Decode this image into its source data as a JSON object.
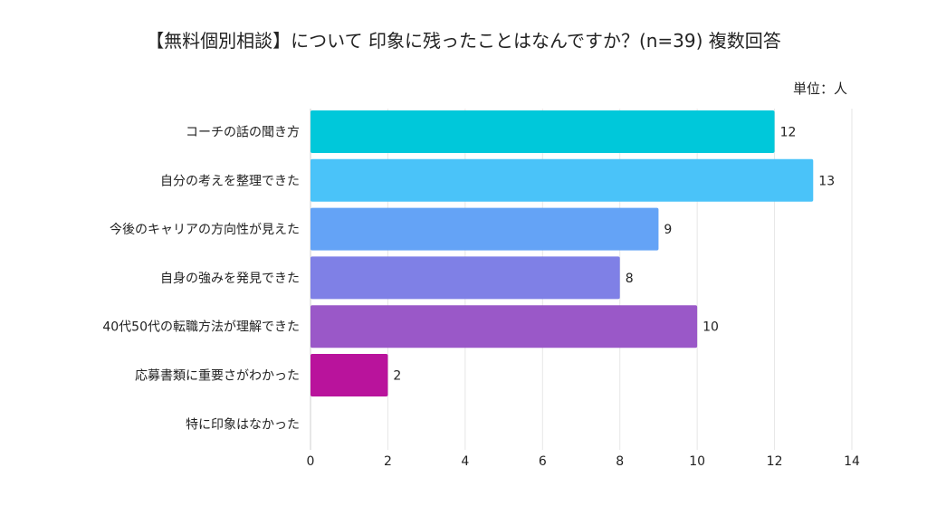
{
  "chart_data": {
    "type": "bar",
    "orientation": "horizontal",
    "title": "【無料個別相談】について 印象に残ったことはなんですか？(n=39) 複数回答",
    "unit_label": "単位：人",
    "categories": [
      "コーチの話の聞き方",
      "自分の考えを整理できた",
      "今後のキャリアの方向性が見えた",
      "自身の強みを発見できた",
      "40代50代の転職方法が理解できた",
      "応募書類に重要さがわかった",
      "特に印象はなかった"
    ],
    "values": [
      12,
      13,
      9,
      8,
      10,
      2,
      0
    ],
    "colors": [
      "#00C8DA",
      "#4AC3F9",
      "#64A3F6",
      "#7F80E6",
      "#9A58C8",
      "#B9139C",
      "#cccccc"
    ],
    "xlim": [
      0,
      14
    ],
    "xticks": [
      0,
      2,
      4,
      6,
      8,
      10,
      12,
      14
    ],
    "grid": true
  }
}
